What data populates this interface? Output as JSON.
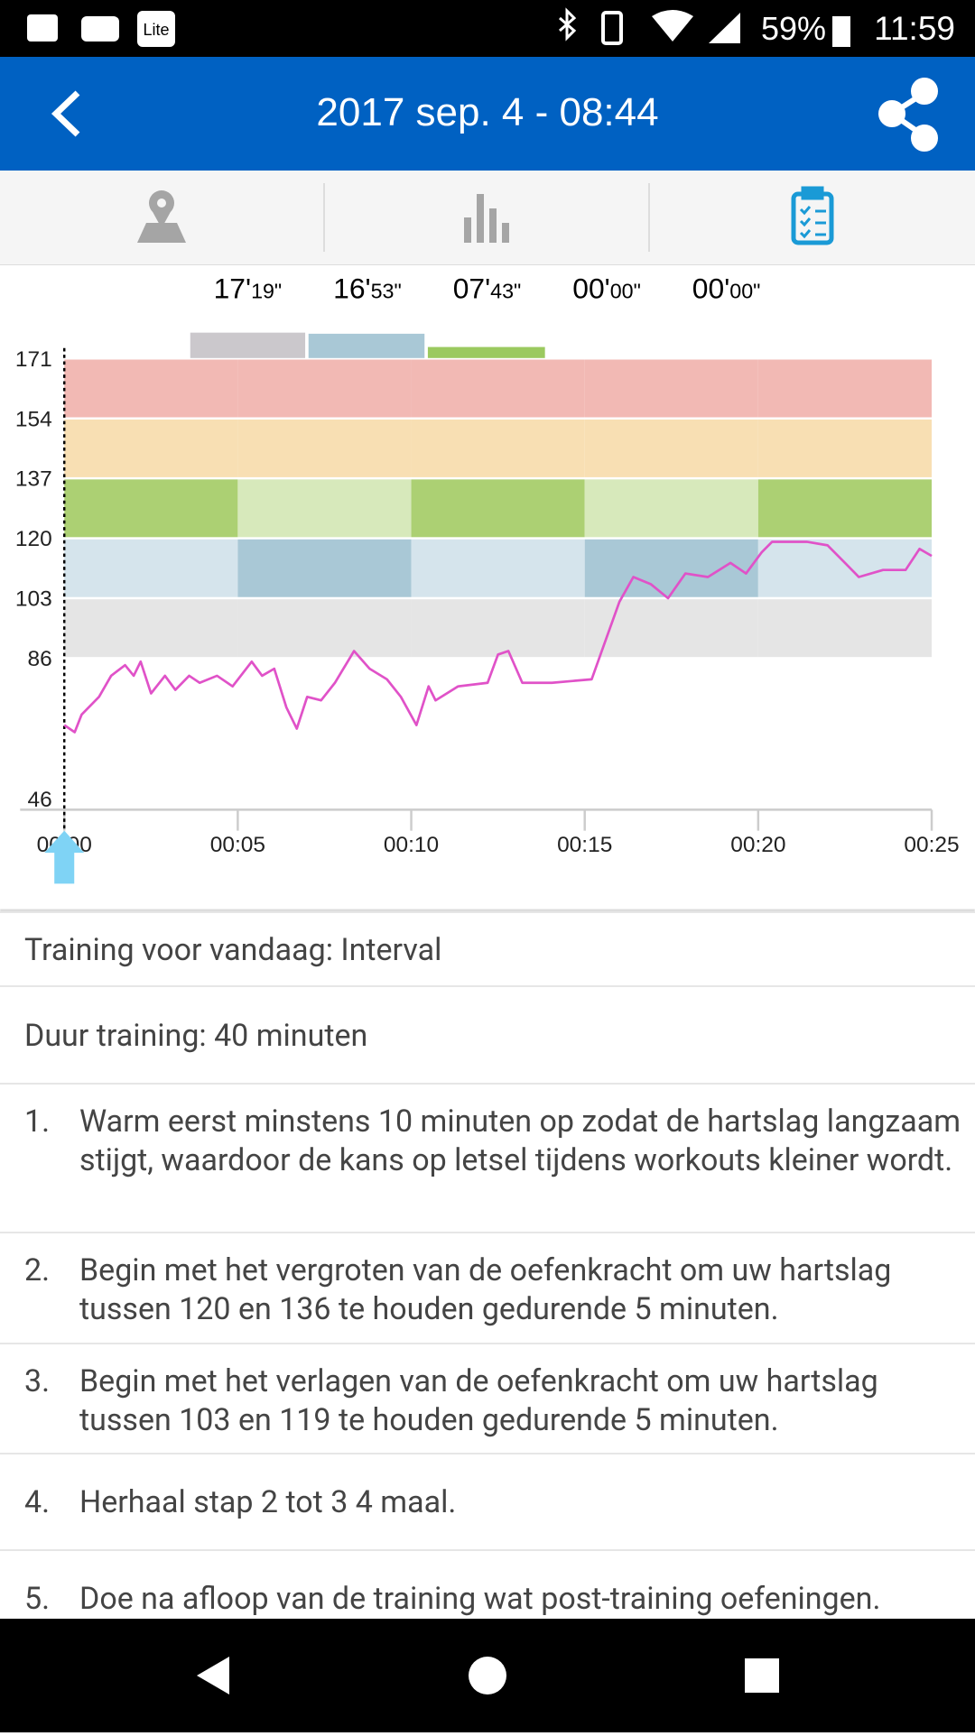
{
  "status_bar": {
    "app_icon": "Lite",
    "battery": "59%",
    "time": "11:59"
  },
  "header": {
    "title": "2017 sep. 4 - 08:44"
  },
  "zone_times": [
    {
      "minutes": "17'",
      "seconds": "19\""
    },
    {
      "minutes": "16'",
      "seconds": "53\""
    },
    {
      "minutes": "07'",
      "seconds": "43\""
    },
    {
      "minutes": "00'",
      "seconds": "00\""
    },
    {
      "minutes": "00'",
      "seconds": "00\""
    }
  ],
  "chart_data": {
    "type": "line",
    "color": "#e052c8",
    "x": [
      0,
      0.3,
      0.5,
      1.0,
      1.35,
      1.75,
      2.0,
      2.2,
      2.5,
      2.9,
      3.2,
      3.6,
      3.9,
      4.4,
      4.85,
      5.4,
      5.7,
      6.05,
      6.4,
      6.7,
      7.0,
      7.4,
      7.8,
      8.35,
      8.8,
      9.3,
      9.7,
      10.15,
      10.5,
      10.7,
      11.35,
      12.2,
      12.5,
      12.8,
      13.2,
      14.05,
      15.2,
      15.6,
      16.0,
      16.4,
      16.9,
      17.4,
      17.9,
      18.55,
      19.2,
      19.65,
      20.1,
      20.4,
      21.4,
      22.0,
      22.5,
      22.9,
      23.6,
      24.25,
      24.65,
      25
    ],
    "values": [
      67,
      65,
      70,
      75,
      81,
      84,
      81,
      85,
      76,
      81,
      77,
      81,
      79,
      81,
      78,
      85,
      81,
      83,
      72,
      66,
      75,
      74,
      79,
      88,
      83,
      80,
      75,
      67,
      78,
      74,
      78,
      79,
      87,
      88,
      79,
      79,
      80,
      91,
      102,
      109,
      107,
      103,
      110,
      109,
      113,
      110,
      116,
      119,
      119,
      118,
      113,
      109,
      111,
      111,
      117,
      115
    ],
    "xlim": [
      0,
      25
    ],
    "xticks": [
      {
        "value": 0,
        "label": "00:00"
      },
      {
        "value": 5,
        "label": "00:05"
      },
      {
        "value": 10,
        "label": "00:10"
      },
      {
        "value": 15,
        "label": "00:15"
      },
      {
        "value": 20,
        "label": "00:20"
      },
      {
        "value": 25,
        "label": "00:25"
      }
    ],
    "ylim": [
      43,
      173
    ],
    "yticks": [
      46,
      86,
      103,
      120,
      137,
      154,
      171
    ],
    "zones": [
      {
        "from": 86,
        "to": 103,
        "colors": [
          "#e5e5e5",
          "#e5e5e5"
        ]
      },
      {
        "from": 103,
        "to": 120,
        "colors": [
          "#d5e4ec",
          "#a9c8d6"
        ]
      },
      {
        "from": 120,
        "to": 137,
        "colors": [
          "#acd073",
          "#d7e9bb"
        ]
      },
      {
        "from": 137,
        "to": 154,
        "colors": [
          "#f8dfb3",
          "#f8dfb3"
        ]
      },
      {
        "from": 154,
        "to": 171,
        "colors": [
          "#f2b9b4",
          "#f2b9b4"
        ]
      }
    ]
  },
  "training": {
    "title": "Training voor vandaag: Interval",
    "duration": "Duur training: 40 minuten",
    "steps": [
      {
        "number": "1.",
        "text": "Warm eerst minstens 10 minuten op zodat de hartslag langzaam stijgt, waardoor de kans op letsel tijdens workouts kleiner wordt."
      },
      {
        "number": "2.",
        "text": "Begin met het vergroten van de oefenkracht om uw hartslag tussen 120 en 136 te houden gedurende 5 minuten."
      },
      {
        "number": "3.",
        "text": "Begin met het verlagen van de oefenkracht om uw hartslag tussen 103 en 119 te houden gedurende 5 minuten."
      },
      {
        "number": "4.",
        "text": "Herhaal stap 2 tot 3 4 maal."
      },
      {
        "number": "5.",
        "text": "Doe na afloop van de training wat post-training oefeningen."
      }
    ]
  }
}
